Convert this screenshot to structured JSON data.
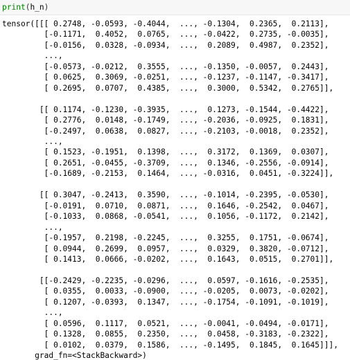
{
  "code": {
    "func": "print",
    "open_paren": "(",
    "arg": "h_n",
    "close_paren": ")"
  },
  "output": {
    "text": "tensor([[[ 0.2748, -0.0593, -0.4044,  ..., -0.1304,  0.2365,  0.2113],\n         [-0.1171,  0.4052,  0.0765,  ..., -0.0422,  0.2735, -0.0035],\n         [-0.0156,  0.0328, -0.0934,  ...,  0.2089,  0.4987,  0.2352],\n         ...,\n         [-0.0573, -0.0212,  0.3555,  ..., -0.1350, -0.0057,  0.2443],\n         [ 0.0625,  0.3069, -0.0251,  ..., -0.1237, -0.1147, -0.3417],\n         [ 0.2695,  0.0707,  0.4385,  ...,  0.3000,  0.5342,  0.2765]],\n\n        [[ 0.1174, -0.1230, -0.3935,  ...,  0.1273, -0.1544, -0.4422],\n         [ 0.2776,  0.0148, -0.1749,  ..., -0.2036, -0.0925,  0.1831],\n         [-0.2497,  0.0638,  0.0827,  ..., -0.2103, -0.0018,  0.2352],\n         ...,\n         [ 0.1523, -0.1951,  0.1398,  ...,  0.3172,  0.1369,  0.0307],\n         [ 0.2651, -0.0455, -0.3709,  ...,  0.1346, -0.2556, -0.0914],\n         [-0.1689, -0.2153,  0.1464,  ..., -0.0316,  0.0451, -0.3224]],\n\n        [[ 0.3047, -0.2413,  0.3590,  ..., -0.1014, -0.2395, -0.0530],\n         [-0.0191,  0.0710,  0.0871,  ...,  0.1646, -0.2542,  0.0467],\n         [-0.1033,  0.0868, -0.0541,  ...,  0.1056, -0.1172,  0.2142],\n         ...,\n         [-0.1957,  0.2198, -0.2245,  ...,  0.3255,  0.1751, -0.0674],\n         [ 0.0944,  0.2699,  0.0957,  ...,  0.0329,  0.3820, -0.0712],\n         [ 0.1413,  0.0666, -0.0202,  ...,  0.1643,  0.0515,  0.2701]],\n\n        [[-0.2429, -0.2235, -0.0296,  ...,  0.0597, -0.1616, -0.2535],\n         [ 0.0355,  0.0033, -0.0900,  ..., -0.0205,  0.0073, -0.0202],\n         [ 0.1207, -0.0393,  0.1347,  ..., -0.1754, -0.1091, -0.1019],\n         ...,\n         [ 0.0596,  0.1117,  0.0521,  ..., -0.0041, -0.0494, -0.0171],\n         [ 0.1328,  0.0855,  0.2350,  ...,  0.0458, -0.3183, -0.2322],\n         [ 0.0102,  0.0379,  0.1586,  ..., -0.1495,  0.1845,  0.1645]]],\n       grad_fn=<StackBackward>)"
  }
}
